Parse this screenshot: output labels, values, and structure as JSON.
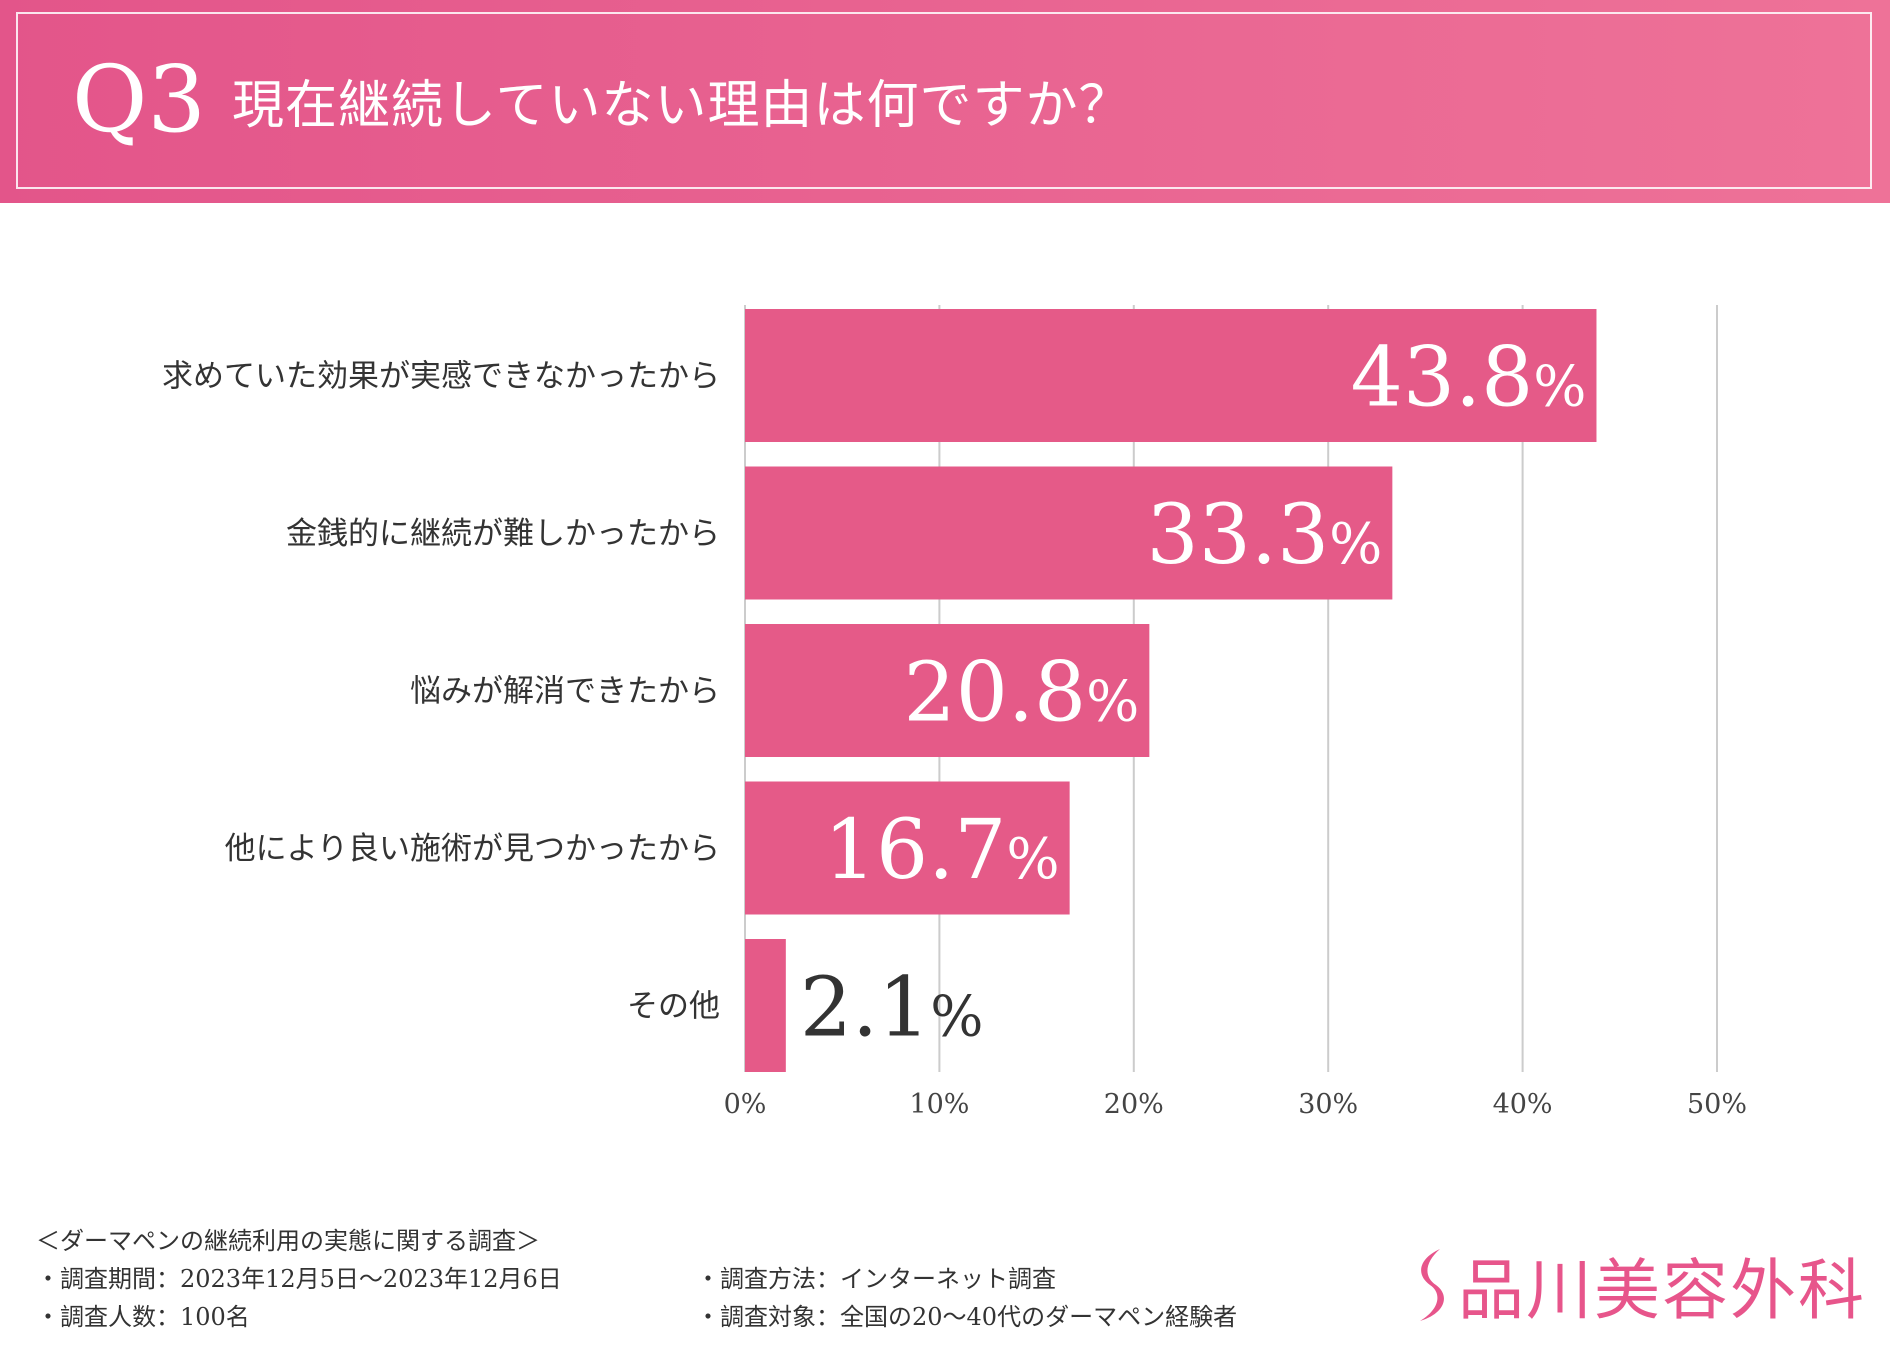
{
  "header": {
    "q_label": "Q3",
    "title": "現在継続していない理由は何ですか？"
  },
  "colors": {
    "bar": "#e55a88",
    "header": "#e95f8f",
    "grid": "#cccccc",
    "logo": "#e7558b"
  },
  "chart_data": {
    "type": "bar",
    "orientation": "horizontal",
    "categories": [
      "求めていた効果が実感できなかったから",
      "金銭的に継続が難しかったから",
      "悩みが解消できたから",
      "他により良い施術が見つかったから",
      "その他"
    ],
    "values": [
      43.8,
      33.3,
      20.8,
      16.7,
      2.1
    ],
    "value_labels": [
      "43.8",
      "33.3",
      "20.8",
      "16.7",
      "2.1"
    ],
    "value_unit": "%",
    "xlim": [
      0,
      50
    ],
    "xticks": [
      0,
      10,
      20,
      30,
      40,
      50
    ],
    "xtick_labels": [
      "0%",
      "10%",
      "20%",
      "30%",
      "40%",
      "50%"
    ],
    "grid": true,
    "title": "現在継続していない理由は何ですか？"
  },
  "footer": {
    "survey_title": "＜ダーマペンの継続利用の実態に関する調査＞",
    "period": "・調査期間：2023年12月5日～2023年12月6日",
    "respondents": "・調査人数：100名",
    "method": "・調査方法：インターネット調査",
    "target": "・調査対象：全国の20～40代のダーマペン経験者"
  },
  "logo": {
    "text": "品川美容外科",
    "icon": "s-swoosh-icon"
  }
}
